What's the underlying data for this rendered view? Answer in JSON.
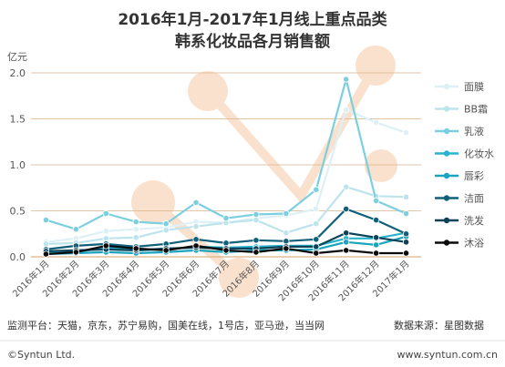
{
  "title": {
    "line1": "2016年1月-2017年1月线上重点品类",
    "line2": "韩系化妆品各月销售额"
  },
  "footer": {
    "platforms": "监测平台：天猫，京东，苏宁易购，国美在线，1号店，亚马逊，当当网",
    "source": "数据来源：星图数据",
    "copyright": "©Syntun Ltd.",
    "website": "www.syntun.com.cn"
  },
  "colors": {
    "background": "#ffffff",
    "grid": "#d9b38c",
    "watermark": "#f6c9a6"
  },
  "chart_data": {
    "type": "line",
    "title": "2016年1月-2017年1月线上重点品类 韩系化妆品各月销售额",
    "ylabel": "亿元",
    "xlabel": "",
    "ylim": [
      0,
      2.0
    ],
    "yticks": [
      "0.0",
      "0.5",
      "1.0",
      "1.5",
      "2.0"
    ],
    "grid": true,
    "legend_position": "right",
    "categories": [
      "2016年1月",
      "2016年2月",
      "2016年3月",
      "2016年4月",
      "2016年5月",
      "2016年6月",
      "2016年7月",
      "2016年8月",
      "2016年9月",
      "2016年10月",
      "2016年11月",
      "2016年12月",
      "2017年1月"
    ],
    "series": [
      {
        "name": "面膜",
        "color": "#dcf0f6",
        "values": [
          0.16,
          0.2,
          0.28,
          0.3,
          0.32,
          0.38,
          0.37,
          0.42,
          0.45,
          0.52,
          1.6,
          1.46,
          1.35
        ]
      },
      {
        "name": "BB霜",
        "color": "#bde3ed",
        "values": [
          0.14,
          0.15,
          0.2,
          0.21,
          0.29,
          0.33,
          0.37,
          0.4,
          0.26,
          0.36,
          0.76,
          0.66,
          0.65
        ]
      },
      {
        "name": "乳液",
        "color": "#7ccfdf",
        "values": [
          0.4,
          0.3,
          0.47,
          0.38,
          0.36,
          0.59,
          0.42,
          0.46,
          0.47,
          0.73,
          1.93,
          0.61,
          0.47
        ]
      },
      {
        "name": "化妆水",
        "color": "#27b4cd",
        "values": [
          0.05,
          0.05,
          0.1,
          0.07,
          0.08,
          0.11,
          0.1,
          0.11,
          0.12,
          0.12,
          0.2,
          0.2,
          0.26
        ]
      },
      {
        "name": "唇彩",
        "color": "#1aa4bd",
        "values": [
          0.03,
          0.04,
          0.05,
          0.04,
          0.05,
          0.07,
          0.05,
          0.07,
          0.07,
          0.08,
          0.16,
          0.13,
          0.22
        ]
      },
      {
        "name": "洁面",
        "color": "#11607a",
        "values": [
          0.08,
          0.12,
          0.14,
          0.11,
          0.14,
          0.19,
          0.15,
          0.18,
          0.17,
          0.19,
          0.52,
          0.4,
          0.25
        ]
      },
      {
        "name": "洗发",
        "color": "#0c4358",
        "values": [
          0.06,
          0.07,
          0.08,
          0.07,
          0.09,
          0.1,
          0.09,
          0.09,
          0.11,
          0.11,
          0.26,
          0.21,
          0.16
        ]
      },
      {
        "name": "沐浴",
        "color": "#0b0b0b",
        "values": [
          0.03,
          0.05,
          0.12,
          0.09,
          0.07,
          0.12,
          0.07,
          0.05,
          0.09,
          0.04,
          0.07,
          0.04,
          0.04
        ]
      }
    ]
  }
}
